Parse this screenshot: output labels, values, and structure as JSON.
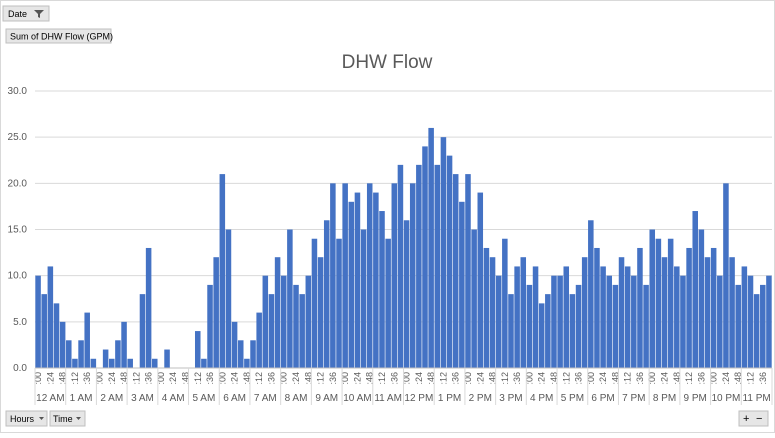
{
  "controls": {
    "filter": "Date",
    "value_field": "Sum of DHW Flow (GPM)",
    "row_fields": [
      "Hours",
      "Time"
    ]
  },
  "chart_data": {
    "type": "bar",
    "title": "DHW Flow",
    "color": "#4472c4",
    "grid": true,
    "ylim": [
      0,
      30
    ],
    "yticks": [
      {
        "value": 0,
        "label": "0.0"
      },
      {
        "value": 5,
        "label": "5.0"
      },
      {
        "value": 10,
        "label": "10.0"
      },
      {
        "value": 15,
        "label": "15.0"
      },
      {
        "value": 20,
        "label": "20.0"
      },
      {
        "value": 25,
        "label": "25.0"
      },
      {
        "value": 30,
        "label": "30.0"
      }
    ],
    "hours": [
      "12 AM",
      "1 AM",
      "2 AM",
      "3 AM",
      "4 AM",
      "5 AM",
      "6 AM",
      "7 AM",
      "8 AM",
      "9 AM",
      "10 AM",
      "11 AM",
      "12 PM",
      "1 PM",
      "2 PM",
      "3 PM",
      "4 PM",
      "5 PM",
      "6 PM",
      "7 PM",
      "8 PM",
      "9 PM",
      "10 PM",
      "11 PM"
    ],
    "categories": [
      ":00",
      null,
      ":24",
      null,
      ":48",
      null,
      ":12",
      null,
      ":36",
      null,
      ":00",
      null,
      ":24",
      null,
      ":48",
      null,
      ":12",
      null,
      ":36",
      null,
      ":00",
      null,
      ":24",
      null,
      ":48",
      null,
      ":12",
      null,
      ":36",
      null,
      ":00",
      null,
      ":24",
      null,
      ":48",
      null,
      ":12",
      null,
      ":36",
      null,
      ":00",
      null,
      ":24",
      null,
      ":48",
      null,
      ":12",
      null,
      ":36",
      null,
      ":00",
      null,
      ":24",
      null,
      ":48",
      null,
      ":12",
      null,
      ":36",
      null,
      ":00",
      null,
      ":24",
      null,
      ":48",
      null,
      ":12",
      null,
      ":36",
      null,
      ":00",
      null,
      ":24",
      null,
      ":48",
      null,
      ":12",
      null,
      ":36",
      null,
      ":00",
      null,
      ":24",
      null,
      ":48",
      null,
      ":12",
      null,
      ":36",
      null,
      ":00",
      null,
      ":24",
      null,
      ":48",
      null,
      ":12",
      null,
      ":36",
      null,
      ":00",
      null,
      ":24",
      null,
      ":48",
      null,
      ":12",
      null,
      ":36",
      null,
      ":00",
      null,
      ":24",
      null,
      ":48",
      null,
      ":12",
      null,
      ":36",
      null
    ],
    "values": [
      10,
      8,
      11,
      7,
      5,
      3,
      1,
      3,
      6,
      1,
      0,
      2,
      1,
      3,
      5,
      1,
      0,
      8,
      13,
      1,
      0,
      2,
      0,
      0,
      0,
      0,
      4,
      1,
      9,
      12,
      21,
      15,
      5,
      3,
      1,
      3,
      6,
      10,
      8,
      12,
      10,
      15,
      9,
      8,
      10,
      14,
      12,
      16,
      20,
      14,
      20,
      18,
      19,
      15,
      20,
      19,
      17,
      14,
      20,
      22,
      16,
      20,
      22,
      24,
      26,
      22,
      25,
      23,
      21,
      18,
      21,
      15,
      19,
      13,
      12,
      10,
      14,
      8,
      11,
      12,
      9,
      11,
      7,
      8,
      10,
      10,
      11,
      8,
      9,
      12,
      16,
      13,
      11,
      10,
      9,
      12,
      11,
      10,
      13,
      9,
      15,
      14,
      12,
      14,
      11,
      10,
      13,
      17,
      15,
      12,
      13,
      10,
      20,
      12,
      9,
      11,
      10,
      8,
      9,
      10
    ]
  }
}
